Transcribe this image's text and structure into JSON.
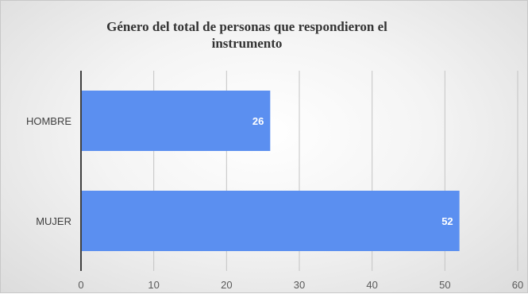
{
  "chart_data": {
    "type": "bar",
    "orientation": "horizontal",
    "title": "Género del total de personas que respondieron el instrumento",
    "categories": [
      "HOMBRE",
      "MUJER"
    ],
    "values": [
      26,
      52
    ],
    "data_labels": [
      "26",
      "52"
    ],
    "xlim": [
      0,
      60
    ],
    "x_ticks": [
      0,
      10,
      20,
      30,
      40,
      50,
      60
    ],
    "grid": true,
    "legend": "none",
    "bar_color": "#5b8ff0"
  }
}
